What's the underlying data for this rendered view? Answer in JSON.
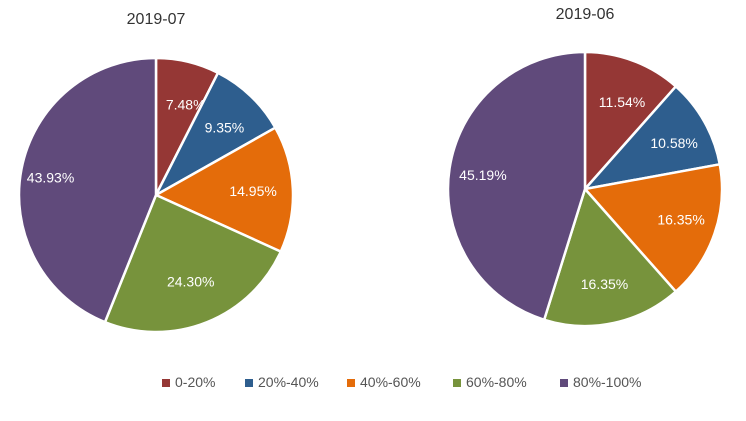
{
  "chart_data": [
    {
      "type": "pie",
      "title": "2019-07",
      "categories": [
        "0-20%",
        "20%-40%",
        "40%-60%",
        "60%-80%",
        "80%-100%"
      ],
      "values": [
        7.48,
        9.35,
        14.95,
        24.3,
        43.93
      ],
      "data_labels": [
        "7.48%",
        "9.35%",
        "14.95%",
        "24.30%",
        "43.93%"
      ],
      "start_angle": "12 o'clock",
      "direction": "clockwise"
    },
    {
      "type": "pie",
      "title": "2019-06",
      "categories": [
        "0-20%",
        "20%-40%",
        "40%-60%",
        "60%-80%",
        "80%-100%"
      ],
      "values": [
        11.54,
        10.58,
        16.35,
        16.35,
        45.19
      ],
      "data_labels": [
        "11.54%",
        "10.58%",
        "16.35%",
        "16.35%",
        "45.19%"
      ],
      "start_angle": "12 o'clock",
      "direction": "clockwise"
    }
  ],
  "legend": {
    "placement": "bottom",
    "items": [
      {
        "label": "0-20%",
        "color": "#953735"
      },
      {
        "label": "20%-40%",
        "color": "#2E5E8E"
      },
      {
        "label": "40%-60%",
        "color": "#E46C0A"
      },
      {
        "label": "60%-80%",
        "color": "#77933C"
      },
      {
        "label": "80%-100%",
        "color": "#604A7B"
      }
    ]
  },
  "colors": [
    "#953735",
    "#2E5E8E",
    "#E46C0A",
    "#77933C",
    "#604A7B"
  ],
  "label_color": "#ffffff",
  "title_color": "#333333",
  "legend_text_color": "#555555",
  "slice_border_color": "#ffffff"
}
